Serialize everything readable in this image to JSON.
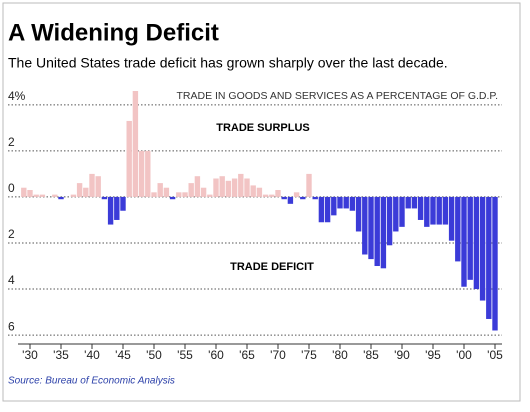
{
  "chart_data": {
    "type": "bar",
    "title": "A Widening Deficit",
    "subtitle": "The United States trade deficit has grown sharply over the last decade.",
    "annotation": "TRADE IN GOODS AND SERVICES AS A PERCENTAGE OF G.D.P.",
    "surplus_label": "TRADE SURPLUS",
    "deficit_label": "TRADE DEFICIT",
    "source": "Source: Bureau of Economic Analysis",
    "categories": [
      null,
      "'30",
      null,
      null,
      null,
      null,
      "'35",
      null,
      null,
      null,
      null,
      "'40",
      null,
      null,
      null,
      null,
      "'45",
      null,
      null,
      null,
      null,
      "'50",
      null,
      null,
      null,
      null,
      "'55",
      null,
      null,
      null,
      null,
      "'60",
      null,
      null,
      null,
      null,
      "'65",
      null,
      null,
      null,
      null,
      "'70",
      null,
      null,
      null,
      null,
      "'75",
      null,
      null,
      null,
      null,
      "'80",
      null,
      null,
      null,
      null,
      "'85",
      null,
      null,
      null,
      null,
      "'90",
      null,
      null,
      null,
      null,
      "'95",
      null,
      null,
      null,
      null,
      "'00",
      null,
      null,
      null,
      null,
      "'05"
    ],
    "values": [
      0.4,
      0.3,
      0.1,
      0.1,
      0.0,
      0.1,
      -0.1,
      0.0,
      0.1,
      0.6,
      0.4,
      1.0,
      0.9,
      -0.1,
      -1.2,
      -1.0,
      -0.6,
      3.3,
      4.6,
      2.0,
      2.0,
      0.2,
      0.6,
      0.4,
      -0.1,
      0.2,
      0.2,
      0.6,
      0.9,
      0.4,
      0.1,
      0.8,
      0.9,
      0.7,
      0.8,
      1.0,
      0.8,
      0.5,
      0.4,
      0.1,
      0.1,
      0.3,
      -0.1,
      -0.3,
      0.2,
      -0.1,
      1.0,
      -0.1,
      -1.1,
      -1.1,
      -0.8,
      -0.5,
      -0.5,
      -0.6,
      -1.5,
      -2.5,
      -2.7,
      -3.0,
      -3.1,
      -2.1,
      -1.5,
      -1.3,
      -0.5,
      -0.5,
      -1.0,
      -1.3,
      -1.2,
      -1.2,
      -1.2,
      -1.9,
      -2.8,
      -3.9,
      -3.6,
      -4.0,
      -4.5,
      -5.3,
      -5.8
    ],
    "positive_color": "#f2c4c4",
    "negative_color": "#3b3bd8",
    "ylim": [
      -6.3,
      4.6
    ],
    "yticks": [
      {
        "value": 4,
        "label": "4%"
      },
      2,
      0,
      {
        "value": -2,
        "label": "2"
      },
      {
        "value": -4,
        "label": "4"
      },
      {
        "value": -6,
        "label": "6"
      }
    ],
    "grid": true
  }
}
